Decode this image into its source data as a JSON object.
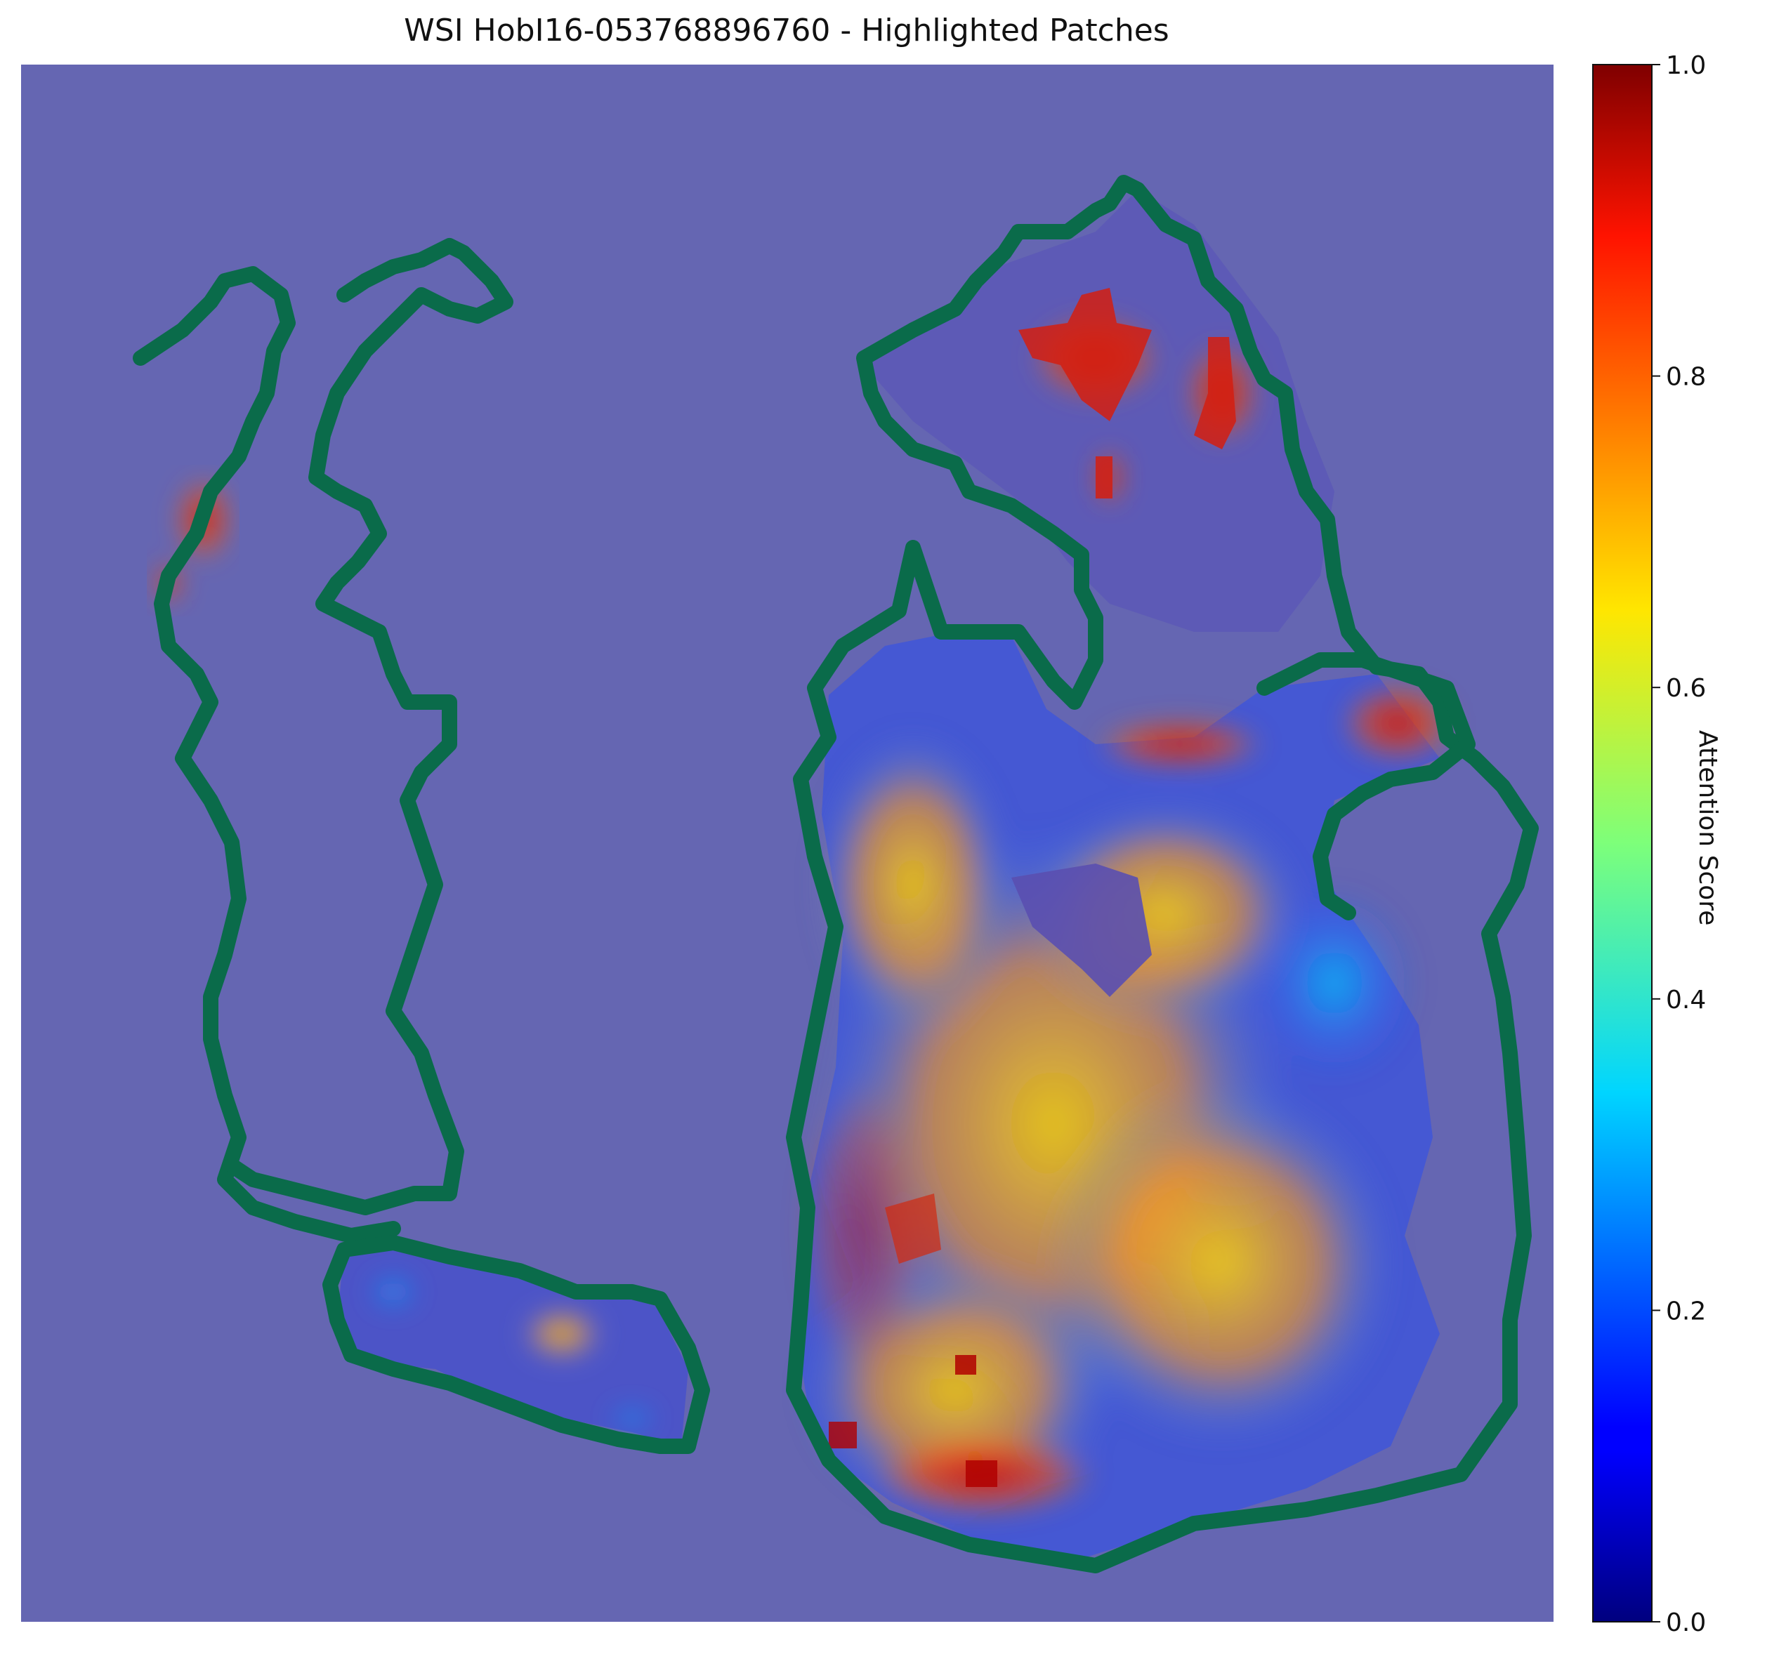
{
  "figure": {
    "title": "WSI HobI16-053768896760 - Highlighted Patches",
    "overlay_fill": "#6566b2",
    "contour_color": "#0a6b4a"
  },
  "colorbar": {
    "label": "Attention Score",
    "colormap": "jet",
    "range": [
      0.0,
      1.0
    ],
    "ticks": [
      "0.0",
      "0.2",
      "0.4",
      "0.6",
      "0.8",
      "1.0"
    ]
  }
}
